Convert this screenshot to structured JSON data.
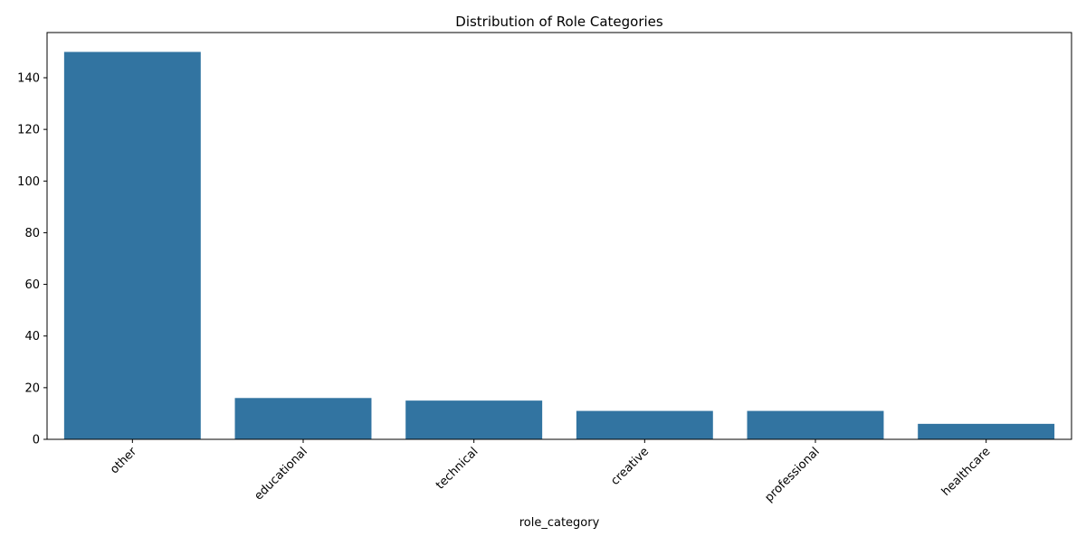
{
  "chart_data": {
    "type": "bar",
    "title": "Distribution of Role Categories",
    "xlabel": "role_category",
    "ylabel": "",
    "categories": [
      "other",
      "educational",
      "technical",
      "creative",
      "professional",
      "healthcare"
    ],
    "values": [
      150,
      16,
      15,
      11,
      11,
      6
    ],
    "ylim": [
      0,
      157.5
    ],
    "yticks": [
      0,
      20,
      40,
      60,
      80,
      100,
      120,
      140
    ],
    "bar_color": "#3274a1",
    "xtick_rotation": 45,
    "grid": false,
    "legend": false
  }
}
